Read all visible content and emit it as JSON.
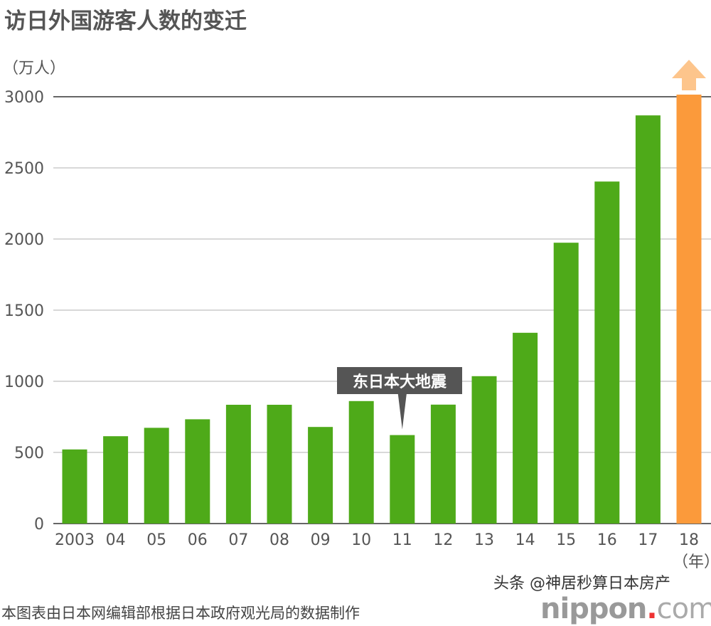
{
  "chart_data": {
    "type": "bar",
    "title": "访日外国游客人数的变迁",
    "ylabel": "（万人）",
    "xlabel": "（年）",
    "categories": [
      "2003",
      "04",
      "05",
      "06",
      "07",
      "08",
      "09",
      "10",
      "11",
      "12",
      "13",
      "14",
      "15",
      "16",
      "17",
      "18"
    ],
    "values": [
      521,
      614,
      673,
      733,
      835,
      835,
      679,
      861,
      622,
      836,
      1036,
      1341,
      1974,
      2404,
      2869,
      3015
    ],
    "colors": {
      "normal": "#4eaa19",
      "highlight": "#fb9a3b",
      "arrow": "#fdc58c",
      "callout": "#555555"
    },
    "highlight_index": 15,
    "yticks": [
      0,
      500,
      1000,
      1500,
      2000,
      2500,
      3000
    ],
    "ylim": [
      0,
      3000
    ],
    "grid": true,
    "annotation": {
      "text": "东日本大地震",
      "category": "11"
    }
  },
  "source": "本图表由日本网编辑部根据日本政府观光局的数据制作",
  "watermark": "头条 @神居秒算日本房产",
  "logo": {
    "main": "nippon",
    "dot": ".",
    "suffix": "com"
  }
}
